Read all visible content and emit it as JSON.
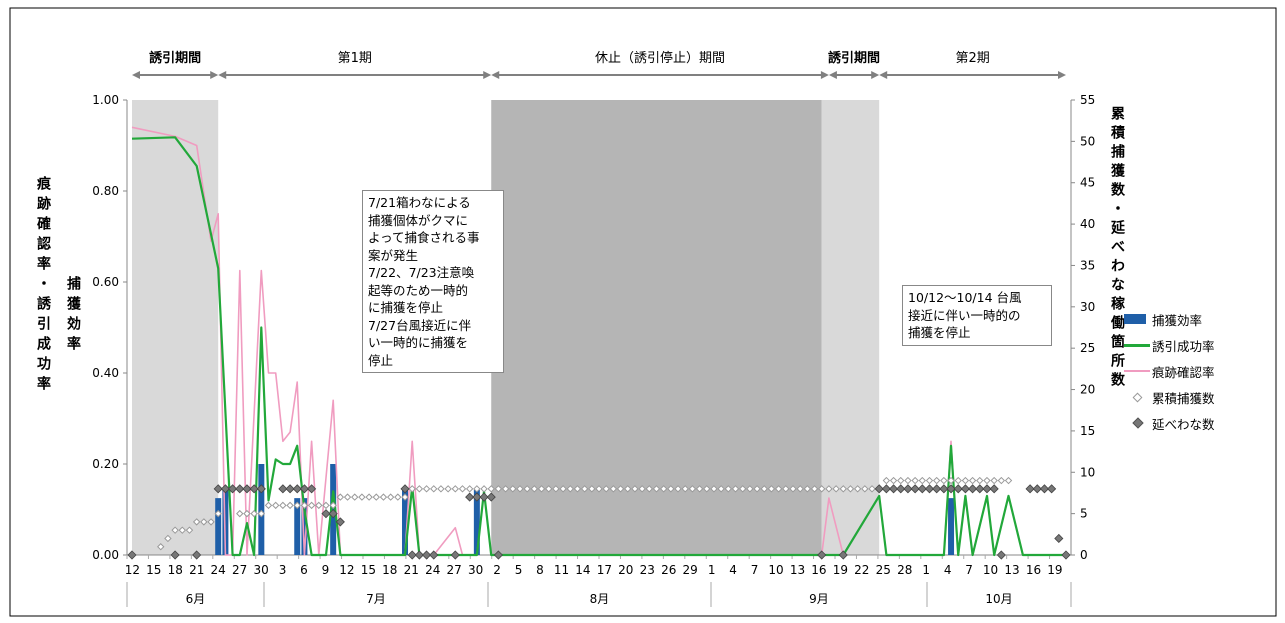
{
  "chart_data": {
    "type": "bar",
    "periods": [
      {
        "label": "誘引期間",
        "from": "6/12",
        "to": "6/24"
      },
      {
        "label": "第1期",
        "from": "6/24",
        "to": "8/1"
      },
      {
        "label": "休止（誘引停止）期間",
        "from": "8/1",
        "to": "9/17"
      },
      {
        "label": "誘引期間",
        "from": "9/17",
        "to": "9/24"
      },
      {
        "label": "第2期",
        "from": "9/24",
        "to": "10/20"
      }
    ],
    "shaded_ranges": [
      {
        "from": "6/12",
        "to": "6/24",
        "tone": "light"
      },
      {
        "from": "8/1",
        "to": "9/16",
        "tone": "dark"
      },
      {
        "from": "9/16",
        "to": "9/24",
        "tone": "light"
      }
    ],
    "months": [
      "6月",
      "7月",
      "8月",
      "9月",
      "10月"
    ],
    "x_tick_labels": [
      "12",
      "15",
      "18",
      "21",
      "24",
      "27",
      "30",
      "3",
      "6",
      "9",
      "12",
      "15",
      "18",
      "21",
      "24",
      "27",
      "30",
      "2",
      "5",
      "8",
      "11",
      "14",
      "17",
      "20",
      "23",
      "26",
      "29",
      "1",
      "4",
      "7",
      "10",
      "13",
      "16",
      "19",
      "22",
      "25",
      "28",
      "1",
      "4",
      "7",
      "10",
      "13",
      "16",
      "19"
    ],
    "y_left": {
      "label": "痕跡確認率・誘引成功率",
      "inner_label": "捕獲効率",
      "ylim": [
        0,
        1.0
      ],
      "ticks": [
        "0.00",
        "0.20",
        "0.40",
        "0.60",
        "0.80",
        "1.00"
      ]
    },
    "y_right": {
      "label": "累積捕獲数・延べわな稼働箇所数",
      "ylim": [
        0,
        55
      ],
      "ticks": [
        "0",
        "5",
        "10",
        "15",
        "20",
        "25",
        "30",
        "35",
        "40",
        "45",
        "50",
        "55"
      ]
    },
    "legend": [
      "捕獲効率",
      "誘引成功率",
      "痕跡確認率",
      "累積捕獲数",
      "延べわな数"
    ],
    "colors": {
      "capture_efficiency": "#1f5fa8",
      "attraction_success": "#22a83a",
      "trace_confirmation": "#f09cc0",
      "cumulative": "#999999",
      "trap_count": "#777777",
      "shade_light": "#d9d9d9",
      "shade_dark": "#b5b5b5"
    },
    "series": [
      {
        "name": "捕獲効率",
        "axis": "left",
        "points": [
          [
            "6/24",
            0.125
          ],
          [
            "6/25",
            0.143
          ],
          [
            "6/30",
            0.2
          ],
          [
            "7/5",
            0.125
          ],
          [
            "7/6",
            0.125
          ],
          [
            "7/10",
            0.2
          ],
          [
            "7/20",
            0.143
          ],
          [
            "7/30",
            0.143
          ],
          [
            "10/4",
            0.125
          ]
        ]
      },
      {
        "name": "誘引成功率",
        "axis": "left",
        "points": [
          [
            "6/12",
            0.915
          ],
          [
            "6/18",
            0.918
          ],
          [
            "6/21",
            0.855
          ],
          [
            "6/24",
            0.63
          ],
          [
            "6/26",
            0.0
          ],
          [
            "6/27",
            0.0
          ],
          [
            "6/28",
            0.07
          ],
          [
            "6/29",
            0.0
          ],
          [
            "6/30",
            0.5
          ],
          [
            "7/1",
            0.12
          ],
          [
            "7/2",
            0.21
          ],
          [
            "7/3",
            0.2
          ],
          [
            "7/4",
            0.2
          ],
          [
            "7/5",
            0.24
          ],
          [
            "7/6",
            0.1
          ],
          [
            "7/7",
            0.0
          ],
          [
            "7/9",
            0.0
          ],
          [
            "7/10",
            0.14
          ],
          [
            "7/11",
            0.0
          ],
          [
            "7/20",
            0.0
          ],
          [
            "7/21",
            0.15
          ],
          [
            "7/22",
            0.0
          ],
          [
            "7/25",
            0.0
          ],
          [
            "7/28",
            0.0
          ],
          [
            "7/30",
            0.0
          ],
          [
            "7/31",
            0.14
          ],
          [
            "8/1",
            0.0
          ],
          [
            "9/19",
            0.0
          ],
          [
            "9/24",
            0.13
          ],
          [
            "9/25",
            0.0
          ],
          [
            "10/3",
            0.0
          ],
          [
            "10/4",
            0.24
          ],
          [
            "10/5",
            0.0
          ],
          [
            "10/6",
            0.13
          ],
          [
            "10/7",
            0.0
          ],
          [
            "10/9",
            0.13
          ],
          [
            "10/10",
            0.0
          ],
          [
            "10/12",
            0.13
          ],
          [
            "10/14",
            0.0
          ],
          [
            "10/20",
            0.0
          ]
        ]
      },
      {
        "name": "痕跡確認率",
        "axis": "left",
        "points": [
          [
            "6/12",
            0.94
          ],
          [
            "6/18",
            0.92
          ],
          [
            "6/21",
            0.9
          ],
          [
            "6/23",
            0.69
          ],
          [
            "6/24",
            0.75
          ],
          [
            "6/25",
            0.0
          ],
          [
            "6/26",
            0.0
          ],
          [
            "6/27",
            0.625
          ],
          [
            "6/28",
            0.0
          ],
          [
            "6/30",
            0.625
          ],
          [
            "7/1",
            0.4
          ],
          [
            "7/2",
            0.4
          ],
          [
            "7/3",
            0.25
          ],
          [
            "7/4",
            0.27
          ],
          [
            "7/5",
            0.38
          ],
          [
            "7/6",
            0.0
          ],
          [
            "7/7",
            0.25
          ],
          [
            "7/8",
            0.0
          ],
          [
            "7/10",
            0.34
          ],
          [
            "7/11",
            0.0
          ],
          [
            "7/20",
            0.0
          ],
          [
            "7/21",
            0.25
          ],
          [
            "7/22",
            0.0
          ],
          [
            "7/24",
            0.0
          ],
          [
            "7/27",
            0.06
          ],
          [
            "7/28",
            0.0
          ],
          [
            "7/30",
            0.0
          ],
          [
            "7/31",
            0.14
          ],
          [
            "8/1",
            0.0
          ],
          [
            "9/16",
            0.0
          ],
          [
            "9/17",
            0.125
          ],
          [
            "9/19",
            0.0
          ],
          [
            "9/24",
            0.13
          ],
          [
            "9/25",
            0.0
          ],
          [
            "10/3",
            0.0
          ],
          [
            "10/4",
            0.25
          ],
          [
            "10/5",
            0.0
          ],
          [
            "10/6",
            0.13
          ],
          [
            "10/7",
            0.0
          ],
          [
            "10/9",
            0.13
          ],
          [
            "10/10",
            0.0
          ],
          [
            "10/12",
            0.13
          ],
          [
            "10/14",
            0.0
          ],
          [
            "10/20",
            0.0
          ]
        ]
      },
      {
        "name": "累積捕獲数",
        "axis": "right",
        "points": [
          [
            "6/16",
            1
          ],
          [
            "6/17",
            2
          ],
          [
            "6/18",
            3
          ],
          [
            "6/19",
            3
          ],
          [
            "6/20",
            3
          ],
          [
            "6/21",
            4
          ],
          [
            "6/22",
            4
          ],
          [
            "6/23",
            4
          ],
          [
            "6/24",
            5
          ],
          [
            "6/27",
            5
          ],
          [
            "6/28",
            5
          ],
          [
            "6/29",
            5
          ],
          [
            "6/30",
            5
          ],
          [
            "7/1",
            6
          ],
          [
            "7/2",
            6
          ],
          [
            "7/3",
            6
          ],
          [
            "7/4",
            6
          ],
          [
            "7/5",
            6
          ],
          [
            "7/6",
            6
          ],
          [
            "7/7",
            6
          ],
          [
            "7/8",
            6
          ],
          [
            "7/9",
            6
          ],
          [
            "7/10",
            6
          ],
          [
            "7/11",
            7
          ],
          [
            "7/12",
            7
          ],
          [
            "7/13",
            7
          ],
          [
            "7/14",
            7
          ],
          [
            "7/15",
            7
          ],
          [
            "7/16",
            7
          ],
          [
            "7/17",
            7
          ],
          [
            "7/18",
            7
          ],
          [
            "7/19",
            7
          ],
          [
            "7/20",
            7
          ],
          [
            "7/21",
            8
          ],
          [
            "7/22",
            8
          ],
          [
            "7/23",
            8
          ],
          [
            "7/24",
            8
          ],
          [
            "7/25",
            8
          ],
          [
            "7/26",
            8
          ],
          [
            "7/27",
            8
          ],
          [
            "7/28",
            8
          ],
          [
            "7/29",
            8
          ],
          [
            "7/30",
            8
          ],
          [
            "7/31",
            8
          ],
          [
            "8/1",
            8
          ],
          [
            "8/2",
            8
          ],
          [
            "8/3",
            8
          ],
          [
            "8/4",
            8
          ],
          [
            "8/5",
            8
          ],
          [
            "8/6",
            8
          ],
          [
            "8/7",
            8
          ],
          [
            "8/8",
            8
          ],
          [
            "8/9",
            8
          ],
          [
            "8/10",
            8
          ],
          [
            "8/11",
            8
          ],
          [
            "8/12",
            8
          ],
          [
            "8/13",
            8
          ],
          [
            "8/14",
            8
          ],
          [
            "8/15",
            8
          ],
          [
            "8/16",
            8
          ],
          [
            "8/17",
            8
          ],
          [
            "8/18",
            8
          ],
          [
            "8/19",
            8
          ],
          [
            "8/20",
            8
          ],
          [
            "8/21",
            8
          ],
          [
            "8/22",
            8
          ],
          [
            "8/23",
            8
          ],
          [
            "8/24",
            8
          ],
          [
            "8/25",
            8
          ],
          [
            "8/26",
            8
          ],
          [
            "8/27",
            8
          ],
          [
            "8/28",
            8
          ],
          [
            "8/29",
            8
          ],
          [
            "8/30",
            8
          ],
          [
            "8/31",
            8
          ],
          [
            "9/1",
            8
          ],
          [
            "9/2",
            8
          ],
          [
            "9/3",
            8
          ],
          [
            "9/4",
            8
          ],
          [
            "9/5",
            8
          ],
          [
            "9/6",
            8
          ],
          [
            "9/7",
            8
          ],
          [
            "9/8",
            8
          ],
          [
            "9/9",
            8
          ],
          [
            "9/10",
            8
          ],
          [
            "9/11",
            8
          ],
          [
            "9/12",
            8
          ],
          [
            "9/13",
            8
          ],
          [
            "9/14",
            8
          ],
          [
            "9/15",
            8
          ],
          [
            "9/16",
            8
          ],
          [
            "9/17",
            8
          ],
          [
            "9/18",
            8
          ],
          [
            "9/19",
            8
          ],
          [
            "9/20",
            8
          ],
          [
            "9/21",
            8
          ],
          [
            "9/22",
            8
          ],
          [
            "9/23",
            8
          ],
          [
            "9/24",
            8
          ],
          [
            "9/25",
            9
          ],
          [
            "9/26",
            9
          ],
          [
            "9/27",
            9
          ],
          [
            "9/28",
            9
          ],
          [
            "9/29",
            9
          ],
          [
            "9/30",
            9
          ],
          [
            "10/1",
            9
          ],
          [
            "10/2",
            9
          ],
          [
            "10/3",
            9
          ],
          [
            "10/4",
            9
          ],
          [
            "10/5",
            9
          ],
          [
            "10/6",
            9
          ],
          [
            "10/7",
            9
          ],
          [
            "10/8",
            9
          ],
          [
            "10/9",
            9
          ],
          [
            "10/10",
            9
          ],
          [
            "10/11",
            9
          ],
          [
            "10/12",
            9
          ]
        ]
      },
      {
        "name": "延べわな数",
        "axis": "right",
        "points": [
          [
            "6/12",
            0
          ],
          [
            "6/18",
            0
          ],
          [
            "6/21",
            0
          ],
          [
            "6/24",
            8
          ],
          [
            "6/25",
            8
          ],
          [
            "6/26",
            8
          ],
          [
            "6/27",
            8
          ],
          [
            "6/28",
            8
          ],
          [
            "6/29",
            8
          ],
          [
            "6/30",
            8
          ],
          [
            "7/3",
            8
          ],
          [
            "7/4",
            8
          ],
          [
            "7/5",
            8
          ],
          [
            "7/6",
            8
          ],
          [
            "7/7",
            8
          ],
          [
            "7/9",
            5
          ],
          [
            "7/10",
            5
          ],
          [
            "7/11",
            4
          ],
          [
            "7/20",
            8
          ],
          [
            "7/21",
            0
          ],
          [
            "7/22",
            0
          ],
          [
            "7/23",
            0
          ],
          [
            "7/24",
            0
          ],
          [
            "7/27",
            0
          ],
          [
            "7/29",
            7
          ],
          [
            "7/30",
            7
          ],
          [
            "7/31",
            7
          ],
          [
            "8/1",
            7
          ],
          [
            "8/2",
            0
          ],
          [
            "9/16",
            0
          ],
          [
            "9/19",
            0
          ],
          [
            "9/24",
            8
          ],
          [
            "9/25",
            8
          ],
          [
            "9/26",
            8
          ],
          [
            "9/27",
            8
          ],
          [
            "9/28",
            8
          ],
          [
            "9/29",
            8
          ],
          [
            "9/30",
            8
          ],
          [
            "10/1",
            8
          ],
          [
            "10/2",
            8
          ],
          [
            "10/3",
            8
          ],
          [
            "10/4",
            8
          ],
          [
            "10/5",
            8
          ],
          [
            "10/6",
            8
          ],
          [
            "10/7",
            8
          ],
          [
            "10/8",
            8
          ],
          [
            "10/9",
            8
          ],
          [
            "10/10",
            8
          ],
          [
            "10/11",
            0
          ],
          [
            "10/15",
            8
          ],
          [
            "10/16",
            8
          ],
          [
            "10/17",
            8
          ],
          [
            "10/18",
            8
          ],
          [
            "10/19",
            2
          ],
          [
            "10/20",
            0
          ]
        ]
      }
    ],
    "annotations": [
      "7/21箱わなによる\n捕獲個体がクマに\nよって捕食される事\n案が発生\n7/22、7/23注意喚\n起等のため一時的\nに捕獲を停止\n7/27台風接近に伴\nい一時的に捕獲を\n停止",
      "10/12～10/14 台風\n接近に伴い一時的の\n捕獲を停止"
    ],
    "grid": false,
    "legend_position": "right"
  }
}
